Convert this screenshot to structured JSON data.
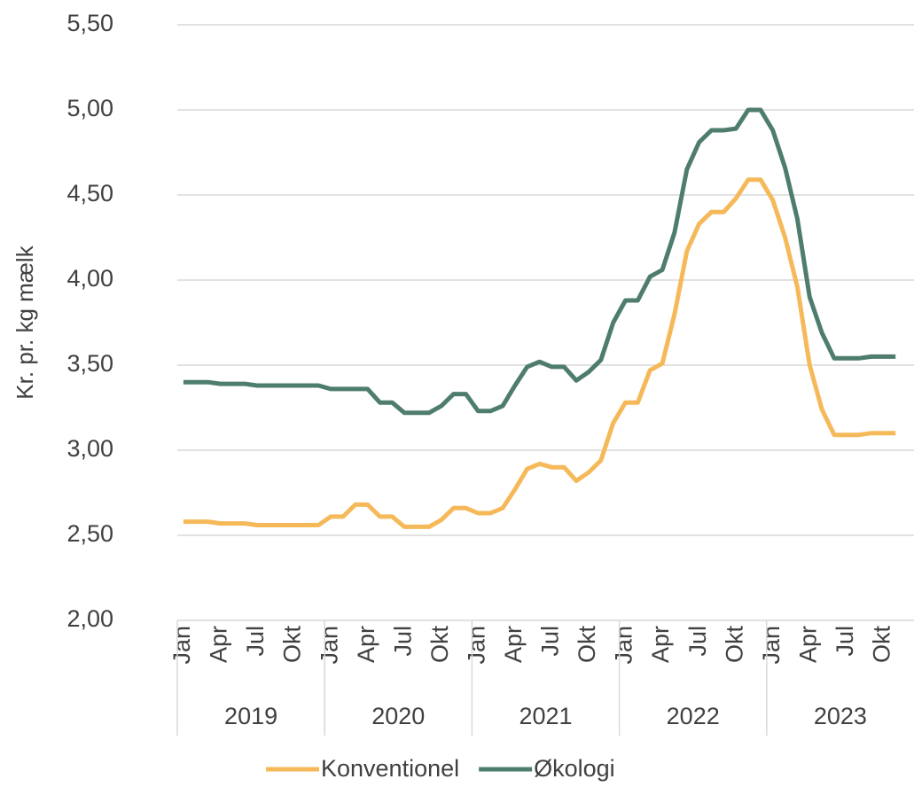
{
  "chart_data": {
    "type": "line",
    "y_label": "Kr. pr. kg mælk",
    "categories": [
      "Jan",
      null,
      null,
      "Apr",
      null,
      null,
      "Jul",
      null,
      null,
      "Okt",
      null,
      null,
      "Jan",
      null,
      null,
      "Apr",
      null,
      null,
      "Jul",
      null,
      null,
      "Okt",
      null,
      null,
      "Jan",
      null,
      null,
      "Apr",
      null,
      null,
      "Jul",
      null,
      null,
      "Okt",
      null,
      null,
      "Jan",
      null,
      null,
      "Apr",
      null,
      null,
      "Jul",
      null,
      null,
      "Okt",
      null,
      null,
      "Jan",
      null,
      null,
      "Apr",
      null,
      null,
      "Jul",
      null,
      null,
      "Okt",
      null,
      null
    ],
    "years": [
      "2019",
      "2020",
      "2021",
      "2022",
      "2023"
    ],
    "series": [
      {
        "name": "Konventionel",
        "color": "#f5b95a",
        "values": [
          2.58,
          2.58,
          2.58,
          2.57,
          2.57,
          2.57,
          2.56,
          2.56,
          2.56,
          2.56,
          2.56,
          2.56,
          2.61,
          2.61,
          2.68,
          2.68,
          2.61,
          2.61,
          2.55,
          2.55,
          2.55,
          2.59,
          2.66,
          2.66,
          2.63,
          2.63,
          2.66,
          2.77,
          2.89,
          2.92,
          2.9,
          2.9,
          2.82,
          2.87,
          2.94,
          3.16,
          3.28,
          3.28,
          3.47,
          3.51,
          3.8,
          4.17,
          4.33,
          4.4,
          4.4,
          4.48,
          4.59,
          4.59,
          4.47,
          4.25,
          3.96,
          3.5,
          3.24,
          3.09,
          3.09,
          3.09,
          3.1,
          3.1,
          3.1,
          null
        ]
      },
      {
        "name": "Økologi",
        "color": "#4e7d6e",
        "values": [
          3.4,
          3.4,
          3.4,
          3.39,
          3.39,
          3.39,
          3.38,
          3.38,
          3.38,
          3.38,
          3.38,
          3.38,
          3.36,
          3.36,
          3.36,
          3.36,
          3.28,
          3.28,
          3.22,
          3.22,
          3.22,
          3.26,
          3.33,
          3.33,
          3.23,
          3.23,
          3.26,
          3.38,
          3.49,
          3.52,
          3.49,
          3.49,
          3.41,
          3.46,
          3.53,
          3.75,
          3.88,
          3.88,
          4.02,
          4.06,
          4.28,
          4.65,
          4.81,
          4.88,
          4.88,
          4.89,
          5.0,
          5.0,
          4.88,
          4.66,
          4.36,
          3.9,
          3.69,
          3.54,
          3.54,
          3.54,
          3.55,
          3.55,
          3.55,
          null
        ]
      }
    ],
    "ylim": [
      2,
      5.5
    ],
    "yticks": [
      {
        "value": 2,
        "label": "2,00"
      },
      {
        "value": 2.5,
        "label": "2,50"
      },
      {
        "value": 3,
        "label": "3,00"
      },
      {
        "value": 3.5,
        "label": "3,50"
      },
      {
        "value": 4,
        "label": "4,00"
      },
      {
        "value": 4.5,
        "label": "4,50"
      },
      {
        "value": 5,
        "label": "5,00"
      },
      {
        "value": 5.5,
        "label": "5,50"
      }
    ],
    "grid": true,
    "legend": "bottom"
  }
}
